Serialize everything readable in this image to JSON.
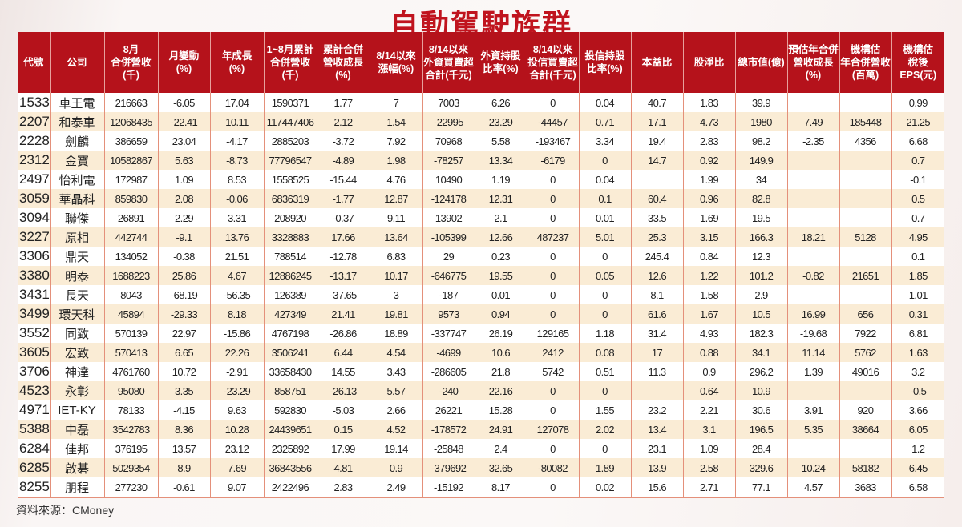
{
  "title": "自動駕駛族群",
  "headers": [
    "代號",
    "公司",
    "8月\n合併營收\n(千)",
    "月變動\n(%)",
    "年成長\n(%)",
    "1~8月累計\n合併營收\n(千)",
    "累計合併\n營收成長\n(%)",
    "8/14以來\n漲幅(%)",
    "8/14以來\n外資買賣超\n合計(千元)",
    "外資持股\n比率(%)",
    "8/14以來\n投信買賣超\n合計(千元)",
    "投信持股\n比率(%)",
    "本益比",
    "股淨比",
    "總市值(億)",
    "預估年合併\n營收成長\n(%)",
    "機構估\n年合併營收\n(百萬)",
    "機構估\n稅後\nEPS(元)"
  ],
  "rows": [
    [
      "1533",
      "車王電",
      "216663",
      "-6.05",
      "17.04",
      "1590371",
      "1.77",
      "7",
      "7003",
      "6.26",
      "0",
      "0.04",
      "40.7",
      "1.83",
      "39.9",
      "",
      "",
      "0.99"
    ],
    [
      "2207",
      "和泰車",
      "12068435",
      "-22.41",
      "10.11",
      "117447406",
      "2.12",
      "1.54",
      "-22995",
      "23.29",
      "-44457",
      "0.71",
      "17.1",
      "4.73",
      "1980",
      "7.49",
      "185448",
      "21.25"
    ],
    [
      "2228",
      "劍麟",
      "386659",
      "23.04",
      "-4.17",
      "2885203",
      "-3.72",
      "7.92",
      "70968",
      "5.58",
      "-193467",
      "3.34",
      "19.4",
      "2.83",
      "98.2",
      "-2.35",
      "4356",
      "6.68"
    ],
    [
      "2312",
      "金寶",
      "10582867",
      "5.63",
      "-8.73",
      "77796547",
      "-4.89",
      "1.98",
      "-78257",
      "13.34",
      "-6179",
      "0",
      "14.7",
      "0.92",
      "149.9",
      "",
      "",
      "0.7"
    ],
    [
      "2497",
      "怡利電",
      "172987",
      "1.09",
      "8.53",
      "1558525",
      "-15.44",
      "4.76",
      "10490",
      "1.19",
      "0",
      "0.04",
      "",
      "1.99",
      "34",
      "",
      "",
      "-0.1"
    ],
    [
      "3059",
      "華晶科",
      "859830",
      "2.08",
      "-0.06",
      "6836319",
      "-1.77",
      "12.87",
      "-124178",
      "12.31",
      "0",
      "0.1",
      "60.4",
      "0.96",
      "82.8",
      "",
      "",
      "0.5"
    ],
    [
      "3094",
      "聯傑",
      "26891",
      "2.29",
      "3.31",
      "208920",
      "-0.37",
      "9.11",
      "13902",
      "2.1",
      "0",
      "0.01",
      "33.5",
      "1.69",
      "19.5",
      "",
      "",
      "0.7"
    ],
    [
      "3227",
      "原相",
      "442744",
      "-9.1",
      "13.76",
      "3328883",
      "17.66",
      "13.64",
      "-105399",
      "12.66",
      "487237",
      "5.01",
      "25.3",
      "3.15",
      "166.3",
      "18.21",
      "5128",
      "4.95"
    ],
    [
      "3306",
      "鼎天",
      "134052",
      "-0.38",
      "21.51",
      "788514",
      "-12.78",
      "6.83",
      "29",
      "0.23",
      "0",
      "0",
      "245.4",
      "0.84",
      "12.3",
      "",
      "",
      "0.1"
    ],
    [
      "3380",
      "明泰",
      "1688223",
      "25.86",
      "4.67",
      "12886245",
      "-13.17",
      "10.17",
      "-646775",
      "19.55",
      "0",
      "0.05",
      "12.6",
      "1.22",
      "101.2",
      "-0.82",
      "21651",
      "1.85"
    ],
    [
      "3431",
      "長天",
      "8043",
      "-68.19",
      "-56.35",
      "126389",
      "-37.65",
      "3",
      "-187",
      "0.01",
      "0",
      "0",
      "8.1",
      "1.58",
      "2.9",
      "",
      "",
      "1.01"
    ],
    [
      "3499",
      "環天科",
      "45894",
      "-29.33",
      "8.18",
      "427349",
      "21.41",
      "19.81",
      "9573",
      "0.94",
      "0",
      "0",
      "61.6",
      "1.67",
      "10.5",
      "16.99",
      "656",
      "0.31"
    ],
    [
      "3552",
      "同致",
      "570139",
      "22.97",
      "-15.86",
      "4767198",
      "-26.86",
      "18.89",
      "-337747",
      "26.19",
      "129165",
      "1.18",
      "31.4",
      "4.93",
      "182.3",
      "-19.68",
      "7922",
      "6.81"
    ],
    [
      "3605",
      "宏致",
      "570413",
      "6.65",
      "22.26",
      "3506241",
      "6.44",
      "4.54",
      "-4699",
      "10.6",
      "2412",
      "0.08",
      "17",
      "0.88",
      "34.1",
      "11.14",
      "5762",
      "1.63"
    ],
    [
      "3706",
      "神達",
      "4761760",
      "10.72",
      "-2.91",
      "33658430",
      "14.55",
      "3.43",
      "-286605",
      "21.8",
      "5742",
      "0.51",
      "11.3",
      "0.9",
      "296.2",
      "1.39",
      "49016",
      "3.2"
    ],
    [
      "4523",
      "永彰",
      "95080",
      "3.35",
      "-23.29",
      "858751",
      "-26.13",
      "5.57",
      "-240",
      "22.16",
      "0",
      "0",
      "",
      "0.64",
      "10.9",
      "",
      "",
      "-0.5"
    ],
    [
      "4971",
      "IET-KY",
      "78133",
      "-4.15",
      "9.63",
      "592830",
      "-5.03",
      "2.66",
      "26221",
      "15.28",
      "0",
      "1.55",
      "23.2",
      "2.21",
      "30.6",
      "3.91",
      "920",
      "3.66"
    ],
    [
      "5388",
      "中磊",
      "3542783",
      "8.36",
      "10.28",
      "24439651",
      "0.15",
      "4.52",
      "-178572",
      "24.91",
      "127078",
      "2.02",
      "13.4",
      "3.1",
      "196.5",
      "5.35",
      "38664",
      "6.05"
    ],
    [
      "6284",
      "佳邦",
      "376195",
      "13.57",
      "23.12",
      "2325892",
      "17.99",
      "19.14",
      "-25848",
      "2.4",
      "0",
      "0",
      "23.1",
      "1.09",
      "28.4",
      "",
      "",
      "1.2"
    ],
    [
      "6285",
      "啟碁",
      "5029354",
      "8.9",
      "7.69",
      "36843556",
      "4.81",
      "0.9",
      "-379692",
      "32.65",
      "-80082",
      "1.89",
      "13.9",
      "2.58",
      "329.6",
      "10.24",
      "58182",
      "6.45"
    ],
    [
      "8255",
      "朋程",
      "277230",
      "-0.61",
      "9.07",
      "2422496",
      "2.83",
      "2.49",
      "-15192",
      "8.17",
      "0",
      "0.02",
      "15.6",
      "2.71",
      "77.1",
      "4.57",
      "3683",
      "6.58"
    ]
  ],
  "source": "資料來源：CMoney"
}
